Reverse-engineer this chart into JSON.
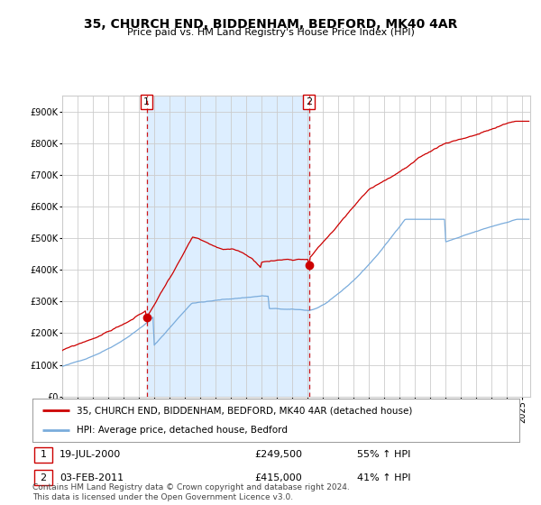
{
  "title": "35, CHURCH END, BIDDENHAM, BEDFORD, MK40 4AR",
  "subtitle": "Price paid vs. HM Land Registry's House Price Index (HPI)",
  "red_label": "35, CHURCH END, BIDDENHAM, BEDFORD, MK40 4AR (detached house)",
  "blue_label": "HPI: Average price, detached house, Bedford",
  "marker1_date": "19-JUL-2000",
  "marker1_price": 249500,
  "marker1_text": "55% ↑ HPI",
  "marker2_date": "03-FEB-2011",
  "marker2_price": 415000,
  "marker2_text": "41% ↑ HPI",
  "footnote": "Contains HM Land Registry data © Crown copyright and database right 2024.\nThis data is licensed under the Open Government Licence v3.0.",
  "ylim": [
    0,
    950000
  ],
  "xlim_start": 1995.0,
  "xlim_end": 2025.5,
  "red_color": "#cc0000",
  "blue_color": "#7aacdc",
  "shading_color": "#ddeeff",
  "marker_fill": "#cc0000",
  "grid_color": "#cccccc",
  "bg_color": "#ffffff",
  "title_fontsize": 10,
  "subtitle_fontsize": 8,
  "tick_fontsize": 7,
  "legend_fontsize": 7.5,
  "info_fontsize": 8,
  "footnote_fontsize": 6.5
}
